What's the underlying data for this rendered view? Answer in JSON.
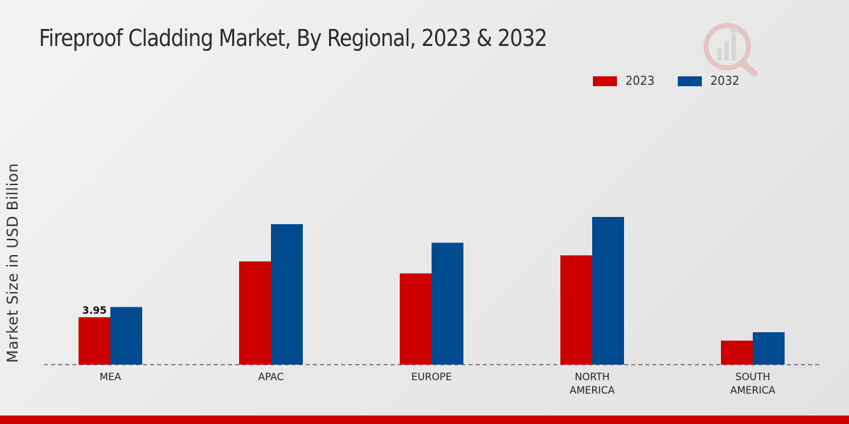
{
  "chart_data": {
    "type": "bar",
    "title": "Fireproof Cladding Market, By Regional, 2023 & 2032",
    "xlabel": "",
    "ylabel": "Market Size in USD Billion",
    "ylim": [
      0,
      12
    ],
    "categories": [
      [
        "MEA"
      ],
      [
        "APAC"
      ],
      [
        "EUROPE"
      ],
      [
        "NORTH",
        "AMERICA"
      ],
      [
        "SOUTH",
        "AMERICA"
      ]
    ],
    "series": [
      {
        "name": "2023",
        "color": "#cc0000",
        "values": [
          3.95,
          8.6,
          7.6,
          9.1,
          2.0
        ]
      },
      {
        "name": "2032",
        "color": "#004a8f",
        "values": [
          4.8,
          11.7,
          10.15,
          12.3,
          2.7
        ]
      }
    ],
    "data_labels": [
      {
        "series": 0,
        "index": 0,
        "text": "3.95"
      }
    ],
    "legend_position": "top-right",
    "grid": false
  }
}
